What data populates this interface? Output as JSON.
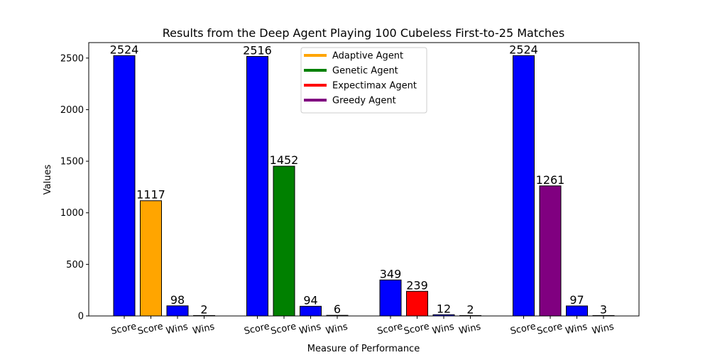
{
  "chart_data": {
    "type": "bar",
    "title": "Results from the Deep Agent Playing 100 Cubeless First-to-25 Matches",
    "xlabel": "Measure of Performance",
    "ylabel": "Values",
    "ylim": [
      0,
      2650
    ],
    "yticks": [
      0,
      500,
      1000,
      1500,
      2000,
      2500
    ],
    "grid": false,
    "legend_position": "top-center",
    "legend": [
      {
        "name": "Adaptive Agent",
        "color": "#ffa500"
      },
      {
        "name": "Genetic Agent",
        "color": "#008000"
      },
      {
        "name": "Expectimax Agent",
        "color": "#ff0000"
      },
      {
        "name": "Greedy Agent",
        "color": "#800080"
      }
    ],
    "groups": [
      {
        "bars": [
          {
            "label": "Score",
            "value": 2524,
            "color": "#0000ff"
          },
          {
            "label": "Score",
            "value": 1117,
            "color": "#ffa500"
          },
          {
            "label": "Wins",
            "value": 98,
            "color": "#0000ff"
          },
          {
            "label": "Wins",
            "value": 2,
            "color": "#ffa500"
          }
        ]
      },
      {
        "bars": [
          {
            "label": "Score",
            "value": 2516,
            "color": "#0000ff"
          },
          {
            "label": "Score",
            "value": 1452,
            "color": "#008000"
          },
          {
            "label": "Wins",
            "value": 94,
            "color": "#0000ff"
          },
          {
            "label": "Wins",
            "value": 6,
            "color": "#008000"
          }
        ]
      },
      {
        "bars": [
          {
            "label": "Score",
            "value": 349,
            "color": "#0000ff"
          },
          {
            "label": "Score",
            "value": 239,
            "color": "#ff0000"
          },
          {
            "label": "Wins",
            "value": 12,
            "color": "#0000ff"
          },
          {
            "label": "Wins",
            "value": 2,
            "color": "#ff0000"
          }
        ]
      },
      {
        "bars": [
          {
            "label": "Score",
            "value": 2524,
            "color": "#0000ff"
          },
          {
            "label": "Score",
            "value": 1261,
            "color": "#800080"
          },
          {
            "label": "Wins",
            "value": 97,
            "color": "#0000ff"
          },
          {
            "label": "Wins",
            "value": 3,
            "color": "#800080"
          }
        ]
      }
    ]
  }
}
